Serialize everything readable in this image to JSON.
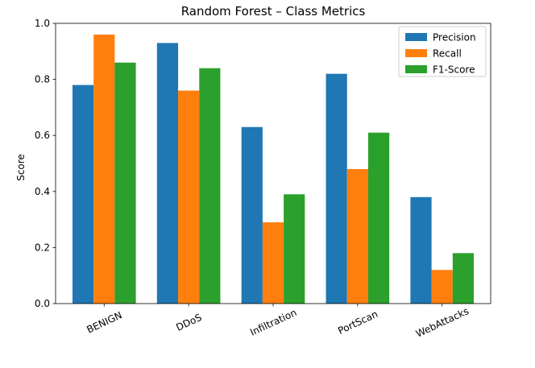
{
  "chart_data": {
    "type": "bar",
    "title": "Random Forest – Class Metrics",
    "xlabel": "",
    "ylabel": "Score",
    "ylim": [
      0,
      1.0
    ],
    "yticks": [
      "0.0",
      "0.2",
      "0.4",
      "0.6",
      "0.8",
      "1.0"
    ],
    "categories": [
      "BENIGN",
      "DDoS",
      "Infiltration",
      "PortScan",
      "WebAttacks"
    ],
    "series": [
      {
        "name": "Precision",
        "color": "#1f77b4",
        "values": [
          0.78,
          0.93,
          0.63,
          0.82,
          0.38
        ]
      },
      {
        "name": "Recall",
        "color": "#ff7f0e",
        "values": [
          0.96,
          0.76,
          0.29,
          0.48,
          0.12
        ]
      },
      {
        "name": "F1-Score",
        "color": "#2ca02c",
        "values": [
          0.86,
          0.84,
          0.39,
          0.61,
          0.18
        ]
      }
    ],
    "legend_position": "top-right",
    "grid": false
  }
}
